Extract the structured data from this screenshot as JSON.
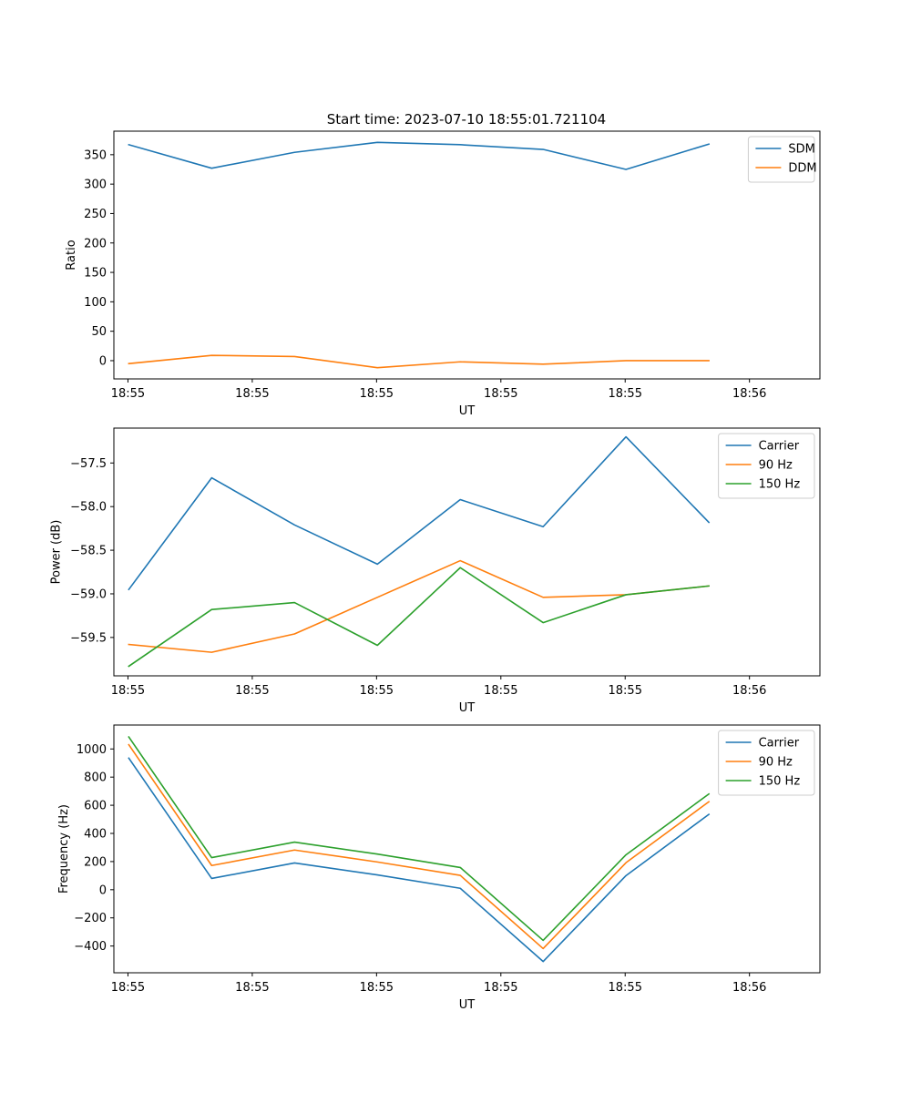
{
  "title": "Start time: 2023-07-10 18:55:01.721104",
  "colors": {
    "blue": "#1f77b4",
    "orange": "#ff7f0e",
    "green": "#2ca02c"
  },
  "chart_data": [
    {
      "type": "line",
      "id": "ratio",
      "xlabel": "UT",
      "ylabel": "Ratio",
      "x": [
        1,
        2,
        3,
        4,
        5,
        6,
        7,
        8
      ],
      "xlim": [
        0.82,
        9.34
      ],
      "x_ticks": [
        0.99,
        2.49,
        3.99,
        5.49,
        6.99,
        8.49
      ],
      "x_tick_labels": [
        "18:55",
        "18:55",
        "18:55",
        "18:55",
        "18:55",
        "18:56"
      ],
      "ylim": [
        -31,
        390
      ],
      "y_ticks": [
        0,
        50,
        100,
        150,
        200,
        250,
        300,
        350
      ],
      "y_tick_labels": [
        "0",
        "50",
        "100",
        "150",
        "200",
        "250",
        "300",
        "350"
      ],
      "legend": "top-right",
      "series": [
        {
          "name": "SDM",
          "color": "blue",
          "values": [
            367,
            327,
            354,
            371,
            367,
            359,
            325,
            368
          ]
        },
        {
          "name": "DDM",
          "color": "orange",
          "values": [
            -5,
            9,
            7,
            -12,
            -2,
            -6,
            0,
            0
          ]
        }
      ]
    },
    {
      "type": "line",
      "id": "power",
      "xlabel": "UT",
      "ylabel": "Power (dB)",
      "x": [
        1,
        2,
        3,
        4,
        5,
        6,
        7,
        8
      ],
      "xlim": [
        0.82,
        9.34
      ],
      "x_ticks": [
        0.99,
        2.49,
        3.99,
        5.49,
        6.99,
        8.49
      ],
      "x_tick_labels": [
        "18:55",
        "18:55",
        "18:55",
        "18:55",
        "18:55",
        "18:56"
      ],
      "ylim": [
        -59.94,
        -57.1
      ],
      "y_ticks": [
        -59.5,
        -59.0,
        -58.5,
        -58.0,
        -57.5
      ],
      "y_tick_labels": [
        "−59.5",
        "−59.0",
        "−58.5",
        "−58.0",
        "−57.5"
      ],
      "legend": "top-right",
      "series": [
        {
          "name": "Carrier",
          "color": "blue",
          "values": [
            -58.95,
            -57.67,
            -58.21,
            -58.66,
            -57.92,
            -58.23,
            -57.2,
            -58.18
          ]
        },
        {
          "name": "90 Hz",
          "color": "orange",
          "values": [
            -59.58,
            -59.67,
            -59.46,
            -59.04,
            -58.62,
            -59.04,
            -59.01,
            -58.91
          ]
        },
        {
          "name": "150 Hz",
          "color": "green",
          "values": [
            -59.83,
            -59.18,
            -59.1,
            -59.59,
            -58.7,
            -59.33,
            -59.01,
            -58.91
          ]
        }
      ]
    },
    {
      "type": "line",
      "id": "frequency",
      "xlabel": "UT",
      "ylabel": "Frequency (Hz)",
      "x": [
        1,
        2,
        3,
        4,
        5,
        6,
        7,
        8
      ],
      "xlim": [
        0.82,
        9.34
      ],
      "x_ticks": [
        0.99,
        2.49,
        3.99,
        5.49,
        6.99,
        8.49
      ],
      "x_tick_labels": [
        "18:55",
        "18:55",
        "18:55",
        "18:55",
        "18:55",
        "18:56"
      ],
      "ylim": [
        -590,
        1170
      ],
      "y_ticks": [
        -400,
        -200,
        0,
        200,
        400,
        600,
        800,
        1000
      ],
      "y_tick_labels": [
        "−400",
        "−200",
        "0",
        "200",
        "400",
        "600",
        "800",
        "1000"
      ],
      "legend": "top-right",
      "series": [
        {
          "name": "Carrier",
          "color": "blue",
          "values": [
            935,
            80,
            190,
            105,
            10,
            -510,
            100,
            535
          ]
        },
        {
          "name": "90 Hz",
          "color": "orange",
          "values": [
            1030,
            172,
            282,
            197,
            102,
            -418,
            192,
            625
          ]
        },
        {
          "name": "150 Hz",
          "color": "green",
          "values": [
            1085,
            228,
            338,
            253,
            158,
            -360,
            248,
            680
          ]
        }
      ]
    }
  ]
}
